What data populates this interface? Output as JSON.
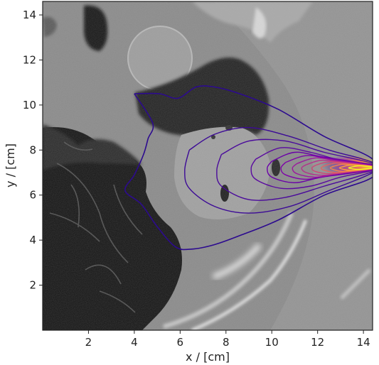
{
  "chart_data": {
    "type": "contour",
    "background": "grayscale CT slice (thorax)",
    "title": "",
    "xlabel": "x / [cm]",
    "ylabel": "y / [cm]",
    "xlim": [
      0,
      14.4
    ],
    "ylim": [
      0,
      14.6
    ],
    "xticks": [
      2,
      4,
      6,
      8,
      10,
      12,
      14
    ],
    "yticks": [
      2,
      4,
      6,
      8,
      10,
      12,
      14
    ],
    "grid": false,
    "colormap": "plasma",
    "source": {
      "x": 14.4,
      "y": 7.2
    },
    "contours": [
      {
        "level": 1,
        "color": "#2c0a8f",
        "points": [
          [
            4.0,
            10.5
          ],
          [
            5.1,
            10.5
          ],
          [
            5.9,
            10.3
          ],
          [
            6.7,
            10.8
          ],
          [
            7.5,
            10.8
          ],
          [
            8.6,
            10.5
          ],
          [
            10.3,
            9.8
          ],
          [
            12.3,
            8.6
          ],
          [
            14.4,
            7.6
          ],
          [
            14.4,
            6.8
          ],
          [
            12.3,
            6.0
          ],
          [
            10.3,
            4.9
          ],
          [
            8.6,
            4.2
          ],
          [
            7.5,
            3.8
          ],
          [
            6.5,
            3.6
          ],
          [
            5.8,
            3.7
          ],
          [
            5.0,
            4.6
          ],
          [
            4.3,
            5.6
          ],
          [
            3.6,
            6.2
          ],
          [
            4.0,
            6.9
          ],
          [
            4.4,
            7.8
          ],
          [
            4.6,
            8.5
          ],
          [
            4.8,
            9.2
          ],
          [
            4.0,
            10.5
          ]
        ]
      },
      {
        "level": 2,
        "color": "#3c0a96",
        "points": [
          [
            6.4,
            8.0
          ],
          [
            7.5,
            8.7
          ],
          [
            9.0,
            9.0
          ],
          [
            10.8,
            8.6
          ],
          [
            12.5,
            8.0
          ],
          [
            14.4,
            7.45
          ],
          [
            14.4,
            7.0
          ],
          [
            12.5,
            6.2
          ],
          [
            10.8,
            5.5
          ],
          [
            9.0,
            5.2
          ],
          [
            7.5,
            5.5
          ],
          [
            6.4,
            6.3
          ],
          [
            6.2,
            7.1
          ],
          [
            6.4,
            8.0
          ]
        ]
      },
      {
        "level": 3,
        "color": "#4a0a9b",
        "points": [
          [
            7.8,
            7.8
          ],
          [
            9.0,
            8.4
          ],
          [
            10.6,
            8.4
          ],
          [
            12.3,
            7.9
          ],
          [
            14.4,
            7.4
          ],
          [
            14.4,
            7.05
          ],
          [
            12.3,
            6.4
          ],
          [
            10.6,
            5.9
          ],
          [
            9.0,
            5.8
          ],
          [
            7.8,
            6.4
          ],
          [
            7.6,
            7.1
          ],
          [
            7.8,
            7.8
          ]
        ]
      },
      {
        "level": 4,
        "color": "#5a0aa0",
        "points": [
          [
            9.3,
            7.6
          ],
          [
            10.4,
            8.1
          ],
          [
            11.7,
            7.9
          ],
          [
            13.0,
            7.55
          ],
          [
            14.4,
            7.35
          ],
          [
            14.4,
            7.1
          ],
          [
            13.0,
            6.8
          ],
          [
            11.7,
            6.4
          ],
          [
            10.4,
            6.3
          ],
          [
            9.3,
            6.7
          ],
          [
            9.1,
            7.2
          ],
          [
            9.3,
            7.6
          ]
        ]
      },
      {
        "level": 5,
        "color": "#6a00a8",
        "points": [
          [
            10.0,
            7.5
          ],
          [
            11.0,
            7.9
          ],
          [
            12.2,
            7.7
          ],
          [
            14.4,
            7.33
          ],
          [
            14.4,
            7.12
          ],
          [
            12.2,
            6.8
          ],
          [
            11.0,
            6.55
          ],
          [
            10.0,
            6.8
          ],
          [
            9.8,
            7.2
          ],
          [
            10.0,
            7.5
          ]
        ]
      },
      {
        "level": 6,
        "color": "#7e03a8",
        "points": [
          [
            10.6,
            7.45
          ],
          [
            11.5,
            7.75
          ],
          [
            12.6,
            7.6
          ],
          [
            14.4,
            7.31
          ],
          [
            14.4,
            7.14
          ],
          [
            12.6,
            6.9
          ],
          [
            11.5,
            6.7
          ],
          [
            10.6,
            6.9
          ],
          [
            10.4,
            7.2
          ],
          [
            10.6,
            7.45
          ]
        ]
      },
      {
        "level": 7,
        "color": "#9c179e",
        "points": [
          [
            11.1,
            7.4
          ],
          [
            11.9,
            7.65
          ],
          [
            12.9,
            7.52
          ],
          [
            14.4,
            7.3
          ],
          [
            14.4,
            7.15
          ],
          [
            12.9,
            6.95
          ],
          [
            11.9,
            6.8
          ],
          [
            11.1,
            6.95
          ],
          [
            10.9,
            7.2
          ],
          [
            11.1,
            7.4
          ]
        ]
      },
      {
        "level": 8,
        "color": "#b52f8c",
        "points": [
          [
            11.5,
            7.35
          ],
          [
            12.2,
            7.55
          ],
          [
            13.2,
            7.45
          ],
          [
            14.4,
            7.29
          ],
          [
            14.4,
            7.16
          ],
          [
            13.2,
            7.0
          ],
          [
            12.2,
            6.88
          ],
          [
            11.5,
            7.0
          ],
          [
            11.3,
            7.2
          ],
          [
            11.5,
            7.35
          ]
        ]
      },
      {
        "level": 9,
        "color": "#cc4778",
        "points": [
          [
            11.9,
            7.32
          ],
          [
            12.5,
            7.48
          ],
          [
            13.4,
            7.4
          ],
          [
            14.4,
            7.28
          ],
          [
            14.4,
            7.17
          ],
          [
            13.4,
            7.05
          ],
          [
            12.5,
            6.95
          ],
          [
            11.9,
            7.05
          ],
          [
            11.75,
            7.2
          ],
          [
            11.9,
            7.32
          ]
        ]
      },
      {
        "level": 10,
        "color": "#e16462",
        "points": [
          [
            12.3,
            7.3
          ],
          [
            12.8,
            7.42
          ],
          [
            13.6,
            7.36
          ],
          [
            14.4,
            7.27
          ],
          [
            14.4,
            7.18
          ],
          [
            13.6,
            7.08
          ],
          [
            12.8,
            7.0
          ],
          [
            12.3,
            7.1
          ],
          [
            12.15,
            7.2
          ],
          [
            12.3,
            7.3
          ]
        ]
      },
      {
        "level": 11,
        "color": "#f2844b",
        "points": [
          [
            12.7,
            7.28
          ],
          [
            13.1,
            7.37
          ],
          [
            13.8,
            7.33
          ],
          [
            14.4,
            7.26
          ],
          [
            14.4,
            7.19
          ],
          [
            13.8,
            7.11
          ],
          [
            13.1,
            7.05
          ],
          [
            12.7,
            7.13
          ],
          [
            12.55,
            7.21
          ],
          [
            12.7,
            7.28
          ]
        ]
      },
      {
        "level": 12,
        "color": "#fca636",
        "points": [
          [
            13.1,
            7.26
          ],
          [
            13.4,
            7.33
          ],
          [
            14.0,
            7.3
          ],
          [
            14.4,
            7.255
          ],
          [
            14.4,
            7.195
          ],
          [
            14.0,
            7.14
          ],
          [
            13.4,
            7.1
          ],
          [
            13.1,
            7.15
          ],
          [
            12.95,
            7.21
          ],
          [
            13.1,
            7.26
          ]
        ]
      },
      {
        "level": 13,
        "color": "#f0f921",
        "points": [
          [
            13.5,
            7.25
          ],
          [
            13.8,
            7.3
          ],
          [
            14.2,
            7.28
          ],
          [
            14.4,
            7.25
          ],
          [
            14.4,
            7.2
          ],
          [
            14.2,
            7.17
          ],
          [
            13.8,
            7.14
          ],
          [
            13.5,
            7.17
          ],
          [
            13.35,
            7.21
          ],
          [
            13.5,
            7.25
          ]
        ]
      }
    ]
  }
}
